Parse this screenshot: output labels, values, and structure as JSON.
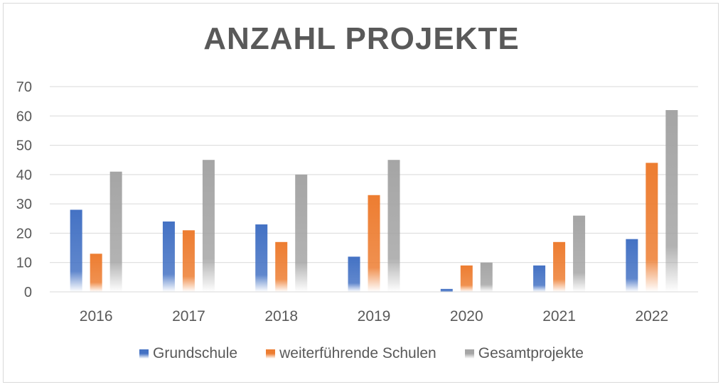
{
  "chart_data": {
    "type": "bar",
    "title": "ANZAHL PROJEKTE",
    "categories": [
      "2016",
      "2017",
      "2018",
      "2019",
      "2020",
      "2021",
      "2022"
    ],
    "series": [
      {
        "name": "Grundschule",
        "color": "#4472c4",
        "values": [
          28,
          24,
          23,
          12,
          1,
          9,
          18
        ]
      },
      {
        "name": "weiterführende Schulen",
        "color": "#ed7d31",
        "values": [
          13,
          21,
          17,
          33,
          9,
          17,
          44
        ]
      },
      {
        "name": "Gesamtprojekte",
        "color": "#a5a5a5",
        "values": [
          41,
          45,
          40,
          45,
          10,
          26,
          62
        ]
      }
    ],
    "ylim": [
      0,
      70
    ],
    "yticks": [
      0,
      10,
      20,
      30,
      40,
      50,
      60,
      70
    ],
    "grid": true,
    "legend_position": "bottom",
    "fill_style": "gradient-fade-to-white"
  }
}
